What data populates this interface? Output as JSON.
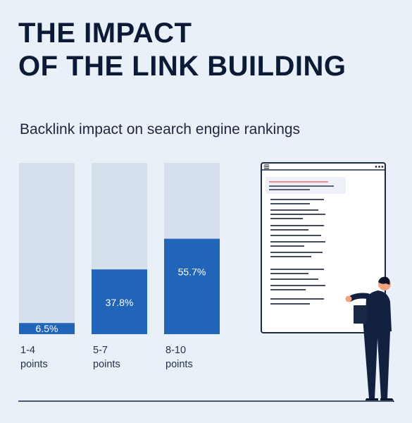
{
  "title_lines": [
    "THE IMPACT",
    "OF THE LINK BUILDING"
  ],
  "colors": {
    "background": "#e9f0f8",
    "bar_track": "#d5e0ec",
    "bar_fill": "#2264b7",
    "title": "#0d1a35",
    "highlight_line": "#f08c8c",
    "text_line": "#2a3346"
  },
  "chart_data": {
    "type": "bar",
    "title": "Backlink impact on search engine rankings",
    "categories": [
      [
        "1-4",
        "points"
      ],
      [
        "5-7",
        "points"
      ],
      [
        "8-10",
        "points"
      ]
    ],
    "values": [
      6.5,
      37.8,
      55.7
    ],
    "value_labels": [
      "6.5%",
      "37.8%",
      "55.7%"
    ],
    "unit": "%",
    "ylim": [
      0,
      100
    ],
    "grid": false,
    "legend": "none"
  },
  "illustration": {
    "browser_menu_icon": "hamburger-icon",
    "browser_dots_icon": "more-dots-icon",
    "figure": "person-pointing-at-screen"
  }
}
